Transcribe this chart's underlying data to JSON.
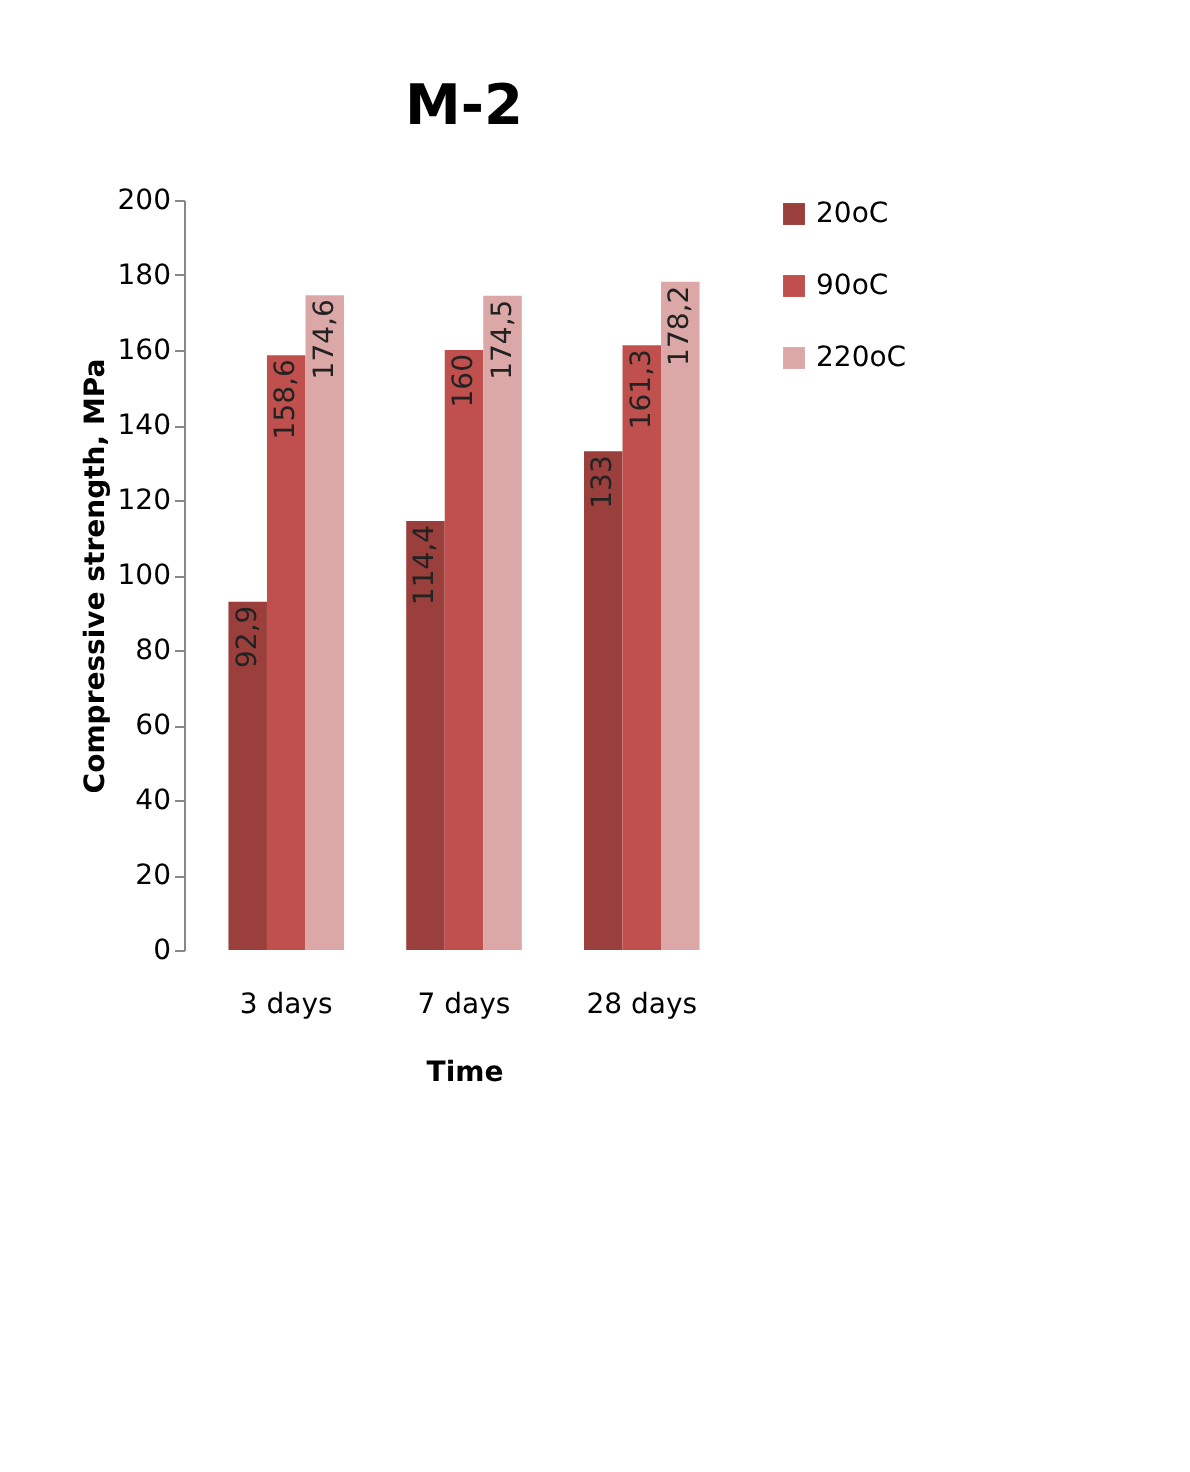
{
  "chart_data": {
    "type": "bar",
    "title": "M-2",
    "xlabel": "Time",
    "ylabel": "Compressive strength, MPa",
    "categories": [
      "3 days",
      "7 days",
      "28 days"
    ],
    "series": [
      {
        "name": "20oC",
        "color": "#9b3f3d",
        "values": [
          92.9,
          114.4,
          133
        ],
        "value_labels": [
          "92,9",
          "114,4",
          "133"
        ]
      },
      {
        "name": "90oC",
        "color": "#c0504d",
        "values": [
          158.6,
          160,
          161.3
        ],
        "value_labels": [
          "158,6",
          "160",
          "161,3"
        ]
      },
      {
        "name": "220oC",
        "color": "#dca8a7",
        "values": [
          174.6,
          174.5,
          178.2
        ],
        "value_labels": [
          "174,6",
          "174,5",
          "178,2"
        ]
      }
    ],
    "ylim": [
      0,
      200
    ],
    "yticks": [
      0,
      20,
      40,
      60,
      80,
      100,
      120,
      140,
      160,
      180,
      200
    ],
    "grid": false,
    "legend": "right"
  }
}
